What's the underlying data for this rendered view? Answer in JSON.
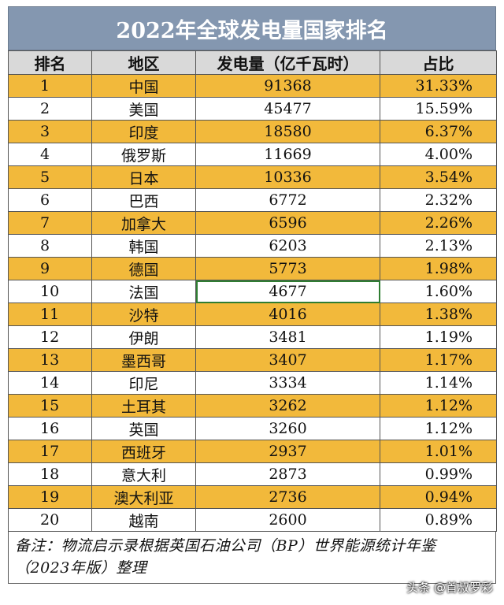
{
  "title": "2022年全球发电量国家排名",
  "headers": [
    "排名",
    "地区",
    "发电量（亿千瓦时）",
    "占比"
  ],
  "rows": [
    {
      "rank": "1",
      "region": "中国",
      "output": "91368",
      "share": "31.33%"
    },
    {
      "rank": "2",
      "region": "美国",
      "output": "45477",
      "share": "15.59%"
    },
    {
      "rank": "3",
      "region": "印度",
      "output": "18580",
      "share": "6.37%"
    },
    {
      "rank": "4",
      "region": "俄罗斯",
      "output": "11669",
      "share": "4.00%"
    },
    {
      "rank": "5",
      "region": "日本",
      "output": "10336",
      "share": "3.54%"
    },
    {
      "rank": "6",
      "region": "巴西",
      "output": "6772",
      "share": "2.32%"
    },
    {
      "rank": "7",
      "region": "加拿大",
      "output": "6596",
      "share": "2.26%"
    },
    {
      "rank": "8",
      "region": "韩国",
      "output": "6203",
      "share": "2.13%"
    },
    {
      "rank": "9",
      "region": "德国",
      "output": "5773",
      "share": "1.98%"
    },
    {
      "rank": "10",
      "region": "法国",
      "output": "4677",
      "share": "1.60%"
    },
    {
      "rank": "11",
      "region": "沙特",
      "output": "4016",
      "share": "1.38%"
    },
    {
      "rank": "12",
      "region": "伊朗",
      "output": "3481",
      "share": "1.19%"
    },
    {
      "rank": "13",
      "region": "墨西哥",
      "output": "3407",
      "share": "1.17%"
    },
    {
      "rank": "14",
      "region": "印尼",
      "output": "3334",
      "share": "1.14%"
    },
    {
      "rank": "15",
      "region": "土耳其",
      "output": "3262",
      "share": "1.12%"
    },
    {
      "rank": "16",
      "region": "英国",
      "output": "3260",
      "share": "1.12%"
    },
    {
      "rank": "17",
      "region": "西班牙",
      "output": "2937",
      "share": "1.01%"
    },
    {
      "rank": "18",
      "region": "意大利",
      "output": "2873",
      "share": "0.99%"
    },
    {
      "rank": "19",
      "region": "澳大利亚",
      "output": "2736",
      "share": "0.94%"
    },
    {
      "rank": "20",
      "region": "越南",
      "output": "2600",
      "share": "0.89%"
    }
  ],
  "note": "备注：物流启示录根据英国石油公司（BP）世界能源统计年鉴（2023年版）整理",
  "watermark": "头条 @首叔罗彩",
  "colors": {
    "title_bg": "#8497b0",
    "header_bg": "#d9d9d9",
    "odd_row": "#f2b93b",
    "even_row": "#ffffff"
  }
}
